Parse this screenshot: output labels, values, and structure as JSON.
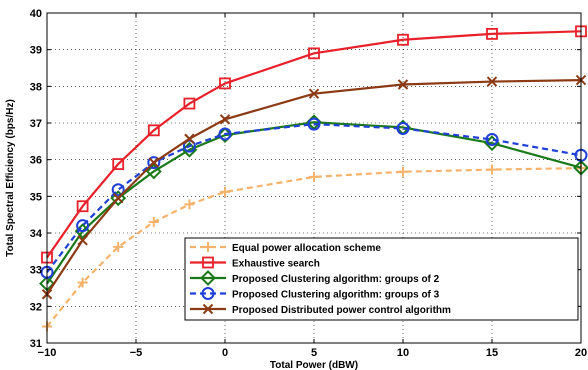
{
  "chart_data": {
    "type": "line",
    "title": "",
    "xlabel": "Total Power (dBW)",
    "ylabel": "Total Spectral Efficiency (bps/Hz)",
    "xlim": [
      -10,
      20
    ],
    "ylim": [
      31,
      40
    ],
    "x_ticks": [
      -10,
      -5,
      0,
      5,
      10,
      15,
      20
    ],
    "x_tick_labels": [
      "−10",
      "−5",
      "0",
      "5",
      "10",
      "15",
      "20"
    ],
    "y_ticks": [
      31,
      32,
      33,
      34,
      35,
      36,
      37,
      38,
      39,
      40
    ],
    "y_tick_labels": [
      "31",
      "32",
      "33",
      "34",
      "35",
      "36",
      "37",
      "38",
      "39",
      "40"
    ],
    "grid": true,
    "legend_position": "bottom-right",
    "series": [
      {
        "name": "Equal power allocation scheme",
        "color": "#f6b26b",
        "dash": "6,4",
        "marker": "plus",
        "x": [
          -10,
          -8,
          -6,
          -4,
          -2,
          0,
          5,
          10,
          15,
          20
        ],
        "y": [
          31.45,
          32.65,
          33.62,
          34.3,
          34.78,
          35.12,
          35.53,
          35.67,
          35.73,
          35.77
        ]
      },
      {
        "name": "Exhaustive search",
        "color": "#e8202a",
        "dash": "",
        "marker": "square",
        "x": [
          -10,
          -8,
          -6,
          -4,
          -2,
          0,
          5,
          10,
          15,
          20
        ],
        "y": [
          33.33,
          34.73,
          35.88,
          36.8,
          37.53,
          38.08,
          38.9,
          39.27,
          39.43,
          39.5
        ]
      },
      {
        "name": "Proposed Clustering algorithm: groups of 2",
        "color": "#1a7a1a",
        "dash": "",
        "marker": "diamond",
        "x": [
          -10,
          -8,
          -6,
          -4,
          -2,
          0,
          5,
          10,
          15,
          20
        ],
        "y": [
          32.62,
          34.05,
          34.95,
          35.68,
          36.27,
          36.67,
          37.02,
          36.88,
          36.45,
          35.78
        ]
      },
      {
        "name": "Proposed Clustering algorithm: groups of 3",
        "color": "#1f3fd6",
        "dash": "6,4",
        "marker": "circle",
        "x": [
          -10,
          -8,
          -6,
          -4,
          -2,
          0,
          5,
          10,
          15,
          20
        ],
        "y": [
          32.93,
          34.2,
          35.18,
          35.92,
          36.37,
          36.7,
          36.97,
          36.85,
          36.55,
          36.12
        ]
      },
      {
        "name": "Proposed Distributed power control algorithm",
        "color": "#8b3a14",
        "dash": "",
        "marker": "x",
        "x": [
          -10,
          -8,
          -6,
          -4,
          -2,
          0,
          5,
          10,
          15,
          20
        ],
        "y": [
          32.33,
          33.8,
          34.95,
          35.92,
          36.57,
          37.1,
          37.8,
          38.05,
          38.13,
          38.17
        ]
      }
    ]
  }
}
